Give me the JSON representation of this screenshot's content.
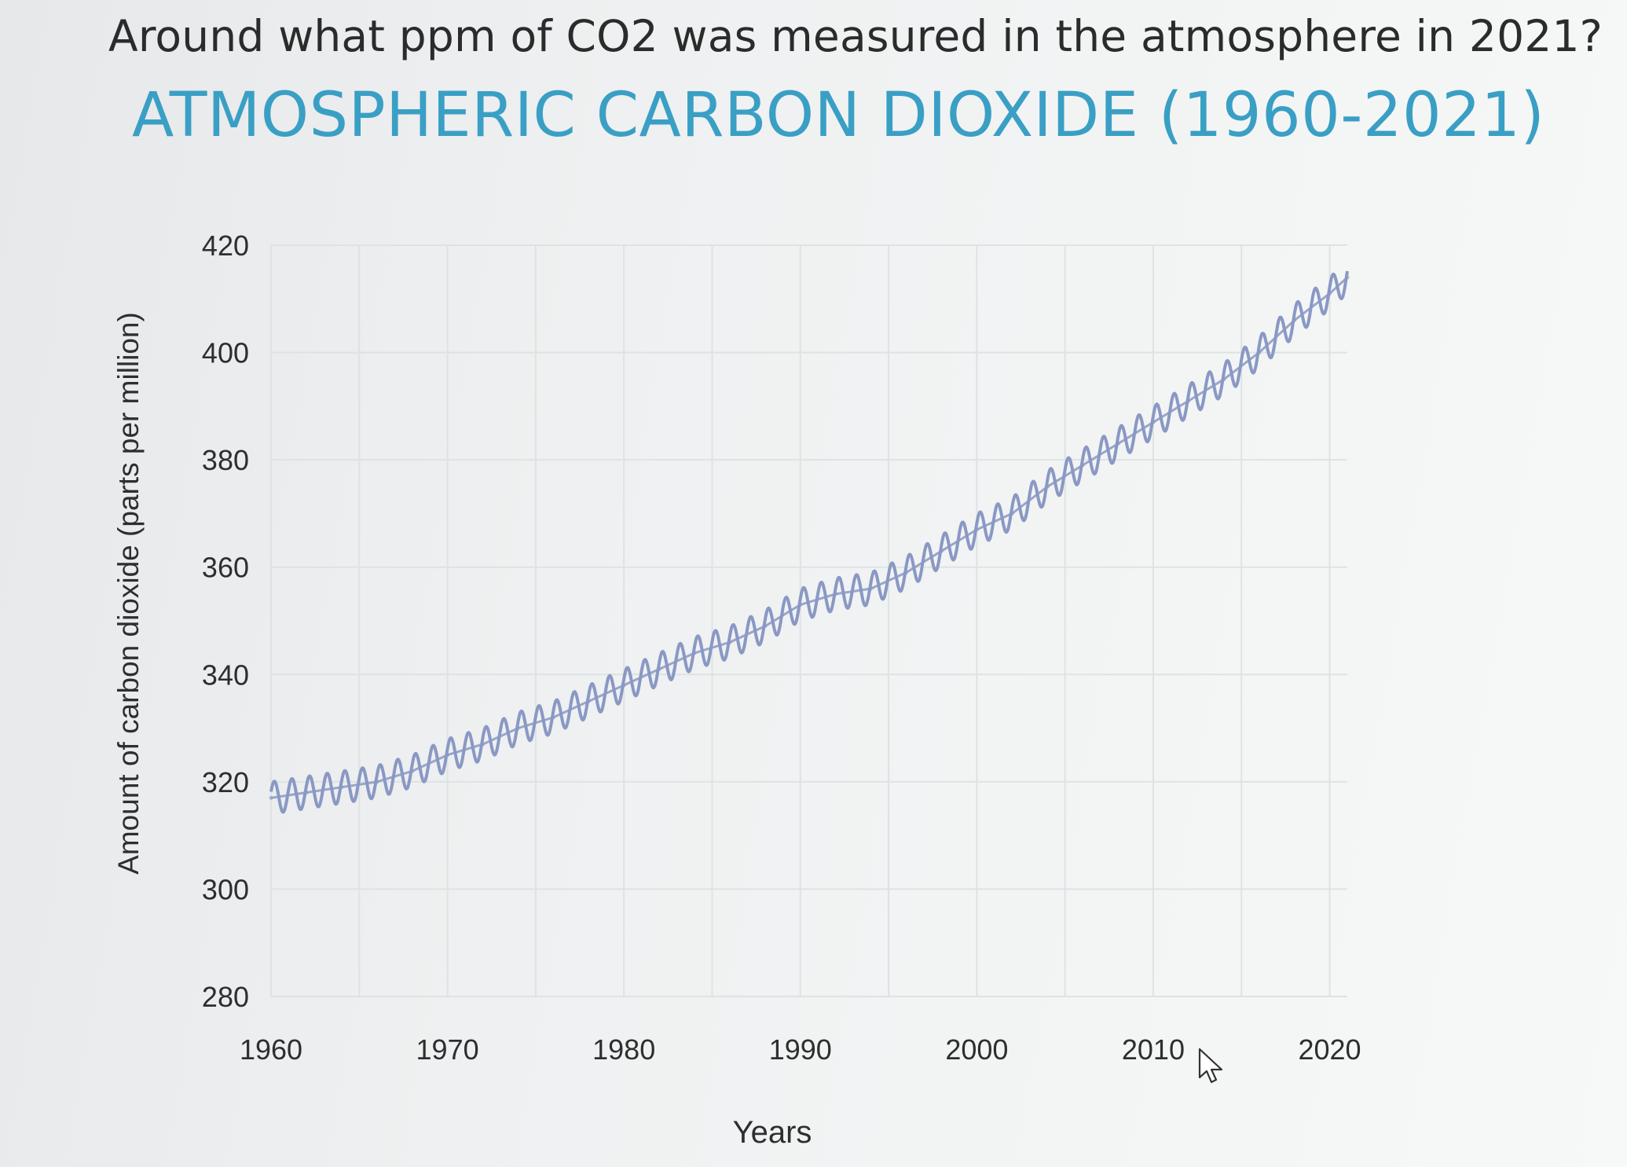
{
  "question": "Around what ppm of CO2 was measured in the atmosphere in 2021?",
  "chart_data": {
    "type": "line",
    "title": "ATMOSPHERIC CARBON DIOXIDE (1960-2021)",
    "xlabel": "Years",
    "ylabel": "Amount of carbon dioxide (parts per million)",
    "xlim": [
      1960,
      2021
    ],
    "ylim": [
      280,
      420
    ],
    "x_ticks": [
      "1960",
      "1970",
      "1980",
      "1990",
      "2000",
      "2010",
      "2020"
    ],
    "y_ticks": [
      "280",
      "300",
      "320",
      "340",
      "360",
      "380",
      "400",
      "420"
    ],
    "grid": true,
    "legend": "none",
    "line_color": "#8a98c4",
    "seasonal_amplitude_ppm": 3,
    "series": [
      {
        "x": [
          1960,
          1962,
          1964,
          1966,
          1968,
          1970,
          1972,
          1974,
          1976,
          1978,
          1980,
          1982,
          1984,
          1986,
          1988,
          1990,
          1992,
          1994,
          1996,
          1998,
          2000,
          2002,
          2004,
          2006,
          2008,
          2010,
          2012,
          2014,
          2016,
          2018,
          2020,
          2021
        ],
        "values": [
          317,
          318,
          319,
          320,
          322,
          325,
          327,
          330,
          332,
          335,
          338,
          341,
          344,
          346,
          349,
          353,
          355,
          356,
          359,
          363,
          367,
          370,
          375,
          379,
          383,
          387,
          391,
          395,
          400,
          406,
          411,
          414
        ]
      }
    ]
  }
}
